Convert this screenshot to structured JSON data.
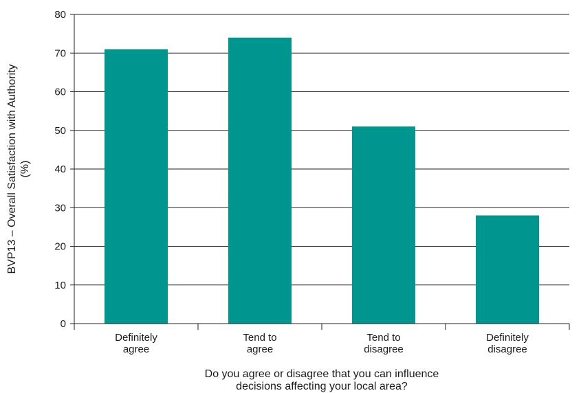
{
  "chart_data": {
    "type": "bar",
    "categories": [
      [
        "Definitely",
        "agree"
      ],
      [
        "Tend to",
        "agree"
      ],
      [
        "Tend to",
        "disagree"
      ],
      [
        "Definitely",
        "disagree"
      ]
    ],
    "values": [
      71,
      74,
      51,
      28
    ],
    "xlabel": [
      "Do you agree or disagree that you can influence",
      "decisions affecting your local area?"
    ],
    "ylabel": [
      "BVP13 – Overall Satisfaction with Authority",
      "(%)"
    ],
    "ylim": [
      0,
      80
    ],
    "yticks": [
      0,
      10,
      20,
      30,
      40,
      50,
      60,
      70,
      80
    ],
    "grid": true,
    "bar_color": "#009690",
    "legend": "none"
  }
}
